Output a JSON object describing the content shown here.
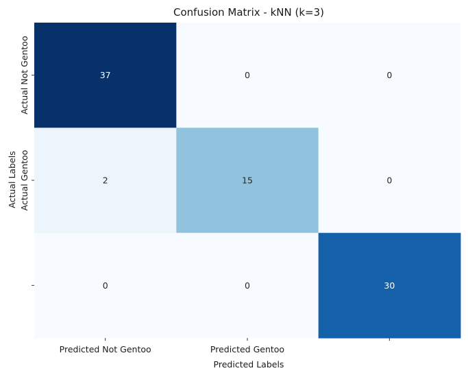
{
  "chart_data": {
    "type": "heatmap",
    "title": "Confusion Matrix - kNN (k=3)",
    "xlabel": "Predicted Labels",
    "ylabel": "Actual Labels",
    "x_tick_labels": [
      "Predicted Not Gentoo",
      "Predicted Gentoo",
      ""
    ],
    "y_tick_labels": [
      "Actual Not Gentoo",
      "Actual Gentoo",
      ""
    ],
    "values": [
      [
        37,
        0,
        0
      ],
      [
        2,
        15,
        0
      ],
      [
        0,
        0,
        30
      ]
    ],
    "colormap": "Blues",
    "colorbar": false,
    "annotations": true,
    "vmin": 0,
    "vmax": 37,
    "colors": {
      "low": "#f7fbff",
      "high": "#08306b",
      "text_dark": "#262626",
      "text_light": "#ffffff"
    }
  }
}
